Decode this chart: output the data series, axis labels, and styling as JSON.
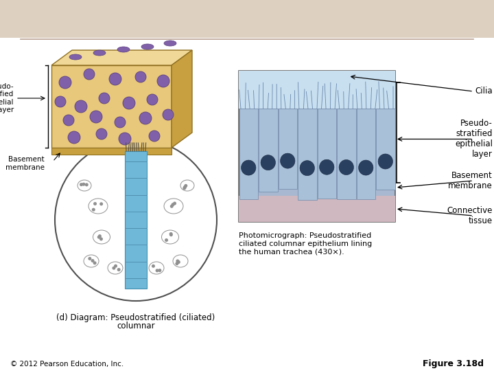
{
  "bg_color": "#ffffff",
  "header_line_color": "#b8a090",
  "left_label_pseudo": "Pseudo-\nstratified\nepithelial\nlayer",
  "left_label_basement": "Basement\nmembrane",
  "diagram_caption_line1": "(d) Diagram: Pseudostratified (ciliated)",
  "diagram_caption_line2": "columnar",
  "right_label_cilia": "Cilia",
  "right_label_pseudo": "Pseudo-\nstratified\nepithelial\nlayer",
  "right_label_basement": "Basement\nmembrane",
  "right_label_connective": "Connective\ntissue",
  "photo_caption": "Photomicrograph: Pseudostratified\nciliated columnar epithelium lining\nthe human trachea (430×).",
  "footer_left": "© 2012 Pearson Education, Inc.",
  "footer_right": "Figure 3.18d",
  "tissue_front_color": "#e8c87a",
  "tissue_top_color": "#f0d898",
  "tissue_right_color": "#c8a040",
  "tissue_border_color": "#907020",
  "nucleus_color": "#8060a8",
  "nucleus_edge": "#5a3f80",
  "basement_strip_color": "#c8a040",
  "circle_border": "#505050",
  "trachea_blue": "#70b8d8",
  "photo_lumen_color": "#c8dff0",
  "photo_cell_color": "#a8c0d8",
  "photo_nucleus_color": "#2a4060",
  "photo_ct_color": "#d0b8c0",
  "photo_border": "#606060"
}
